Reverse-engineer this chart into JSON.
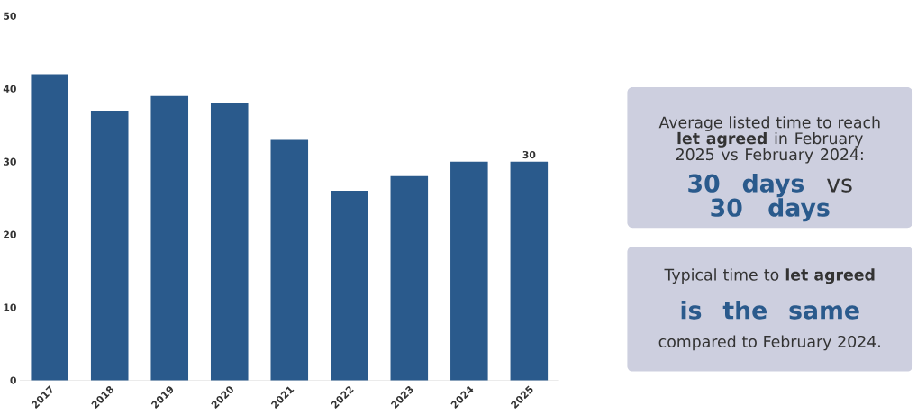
{
  "chart_data": {
    "type": "bar",
    "categories": [
      "2017",
      "2018",
      "2019",
      "2020",
      "2021",
      "2022",
      "2023",
      "2024",
      "2025"
    ],
    "values": [
      42,
      37,
      39,
      38,
      33,
      26,
      28,
      30,
      30
    ],
    "color": "#2a5a8c",
    "value_labels": [
      null,
      null,
      null,
      null,
      null,
      null,
      null,
      null,
      "30"
    ],
    "ylim": [
      0,
      50
    ],
    "yticks": [
      0,
      10,
      20,
      30,
      40,
      50
    ],
    "annotations": [
      "Average listed time to reach **let agreed** in February 2025 vs February 2024:",
      "**30 days** vs **30 days**",
      "Typical time to **let agreed**",
      "**is the same**",
      "compared to February 2024."
    ]
  }
}
